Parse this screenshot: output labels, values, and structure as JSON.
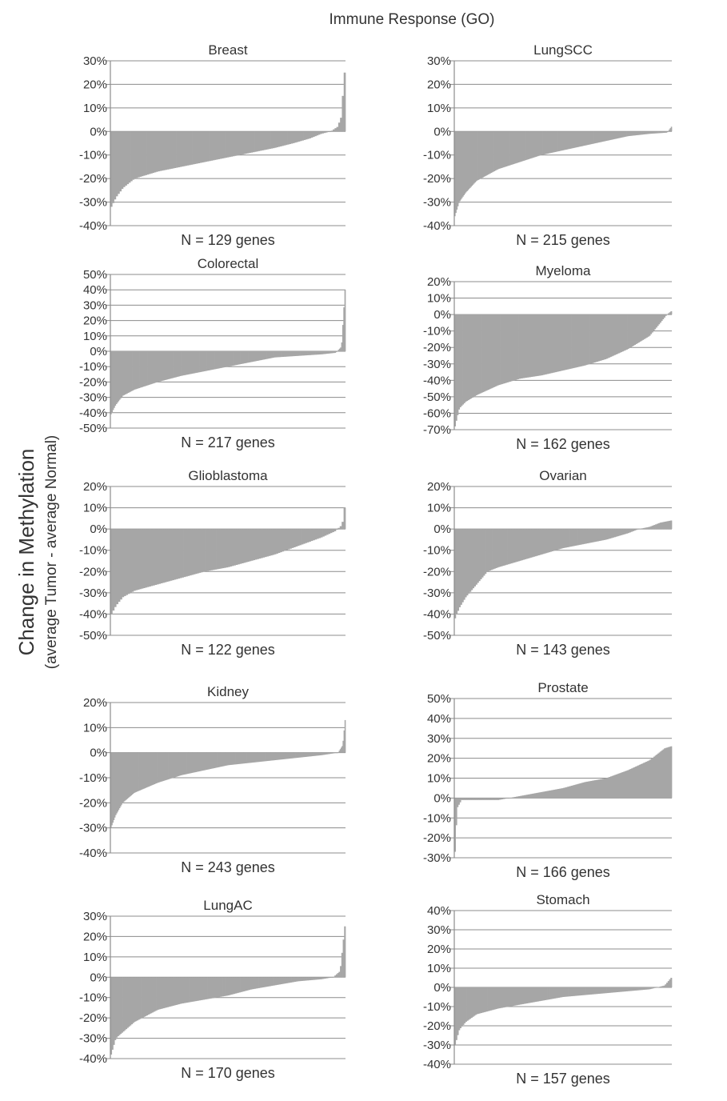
{
  "figure_title": "Immune Response (GO)",
  "ylabel_main": "Change in Methylation",
  "ylabel_sub": "(average Tumor - average Normal)",
  "colors": {
    "bars": "#a6a6a6",
    "gridlines": "#8c8c8c",
    "axis": "#8c8c8c",
    "text": "#333333"
  },
  "chart_data": [
    {
      "type": "bar",
      "title": "Breast",
      "xlabel": "N = 129 genes",
      "ylim": [
        -40,
        30
      ],
      "yticks": [
        "30%",
        "20%",
        "10%",
        "0%",
        "-10%",
        "-20%",
        "-30%",
        "-40%"
      ],
      "yunit": "%",
      "grid": true,
      "n_genes": 129,
      "profile": [
        [
          0,
          -32
        ],
        [
          0.02,
          -28
        ],
        [
          0.05,
          -24
        ],
        [
          0.1,
          -20
        ],
        [
          0.2,
          -17
        ],
        [
          0.3,
          -15
        ],
        [
          0.4,
          -13
        ],
        [
          0.5,
          -11
        ],
        [
          0.6,
          -9
        ],
        [
          0.7,
          -7
        ],
        [
          0.78,
          -5
        ],
        [
          0.85,
          -3
        ],
        [
          0.9,
          -1
        ],
        [
          0.94,
          0
        ],
        [
          0.97,
          2
        ],
        [
          0.985,
          6
        ],
        [
          1,
          25
        ]
      ]
    },
    {
      "type": "bar",
      "title": "LungSCC",
      "xlabel": "N = 215 genes",
      "ylim": [
        -40,
        30
      ],
      "yticks": [
        "30%",
        "20%",
        "10%",
        "0%",
        "-10%",
        "-20%",
        "-30%",
        "-40%"
      ],
      "yunit": "%",
      "grid": true,
      "n_genes": 215,
      "profile": [
        [
          0,
          -36
        ],
        [
          0.02,
          -30
        ],
        [
          0.05,
          -26
        ],
        [
          0.1,
          -21
        ],
        [
          0.2,
          -16
        ],
        [
          0.3,
          -13
        ],
        [
          0.4,
          -10
        ],
        [
          0.5,
          -8
        ],
        [
          0.6,
          -6
        ],
        [
          0.7,
          -4
        ],
        [
          0.8,
          -2
        ],
        [
          0.9,
          -1
        ],
        [
          0.98,
          -0.5
        ],
        [
          1,
          2
        ]
      ]
    },
    {
      "type": "bar",
      "title": "Colorectal",
      "xlabel": "N = 217 genes",
      "ylim": [
        -50,
        50
      ],
      "yticks": [
        "50%",
        "40%",
        "30%",
        "20%",
        "10%",
        "0%",
        "-10%",
        "-20%",
        "-30%",
        "-40%",
        "-50%"
      ],
      "yunit": "%",
      "grid": true,
      "n_genes": 217,
      "profile": [
        [
          0,
          -41
        ],
        [
          0.02,
          -35
        ],
        [
          0.05,
          -29
        ],
        [
          0.1,
          -25
        ],
        [
          0.2,
          -20
        ],
        [
          0.3,
          -16
        ],
        [
          0.4,
          -13
        ],
        [
          0.5,
          -10
        ],
        [
          0.6,
          -7
        ],
        [
          0.7,
          -4
        ],
        [
          0.8,
          -3
        ],
        [
          0.9,
          -2
        ],
        [
          0.96,
          -1
        ],
        [
          0.985,
          3
        ],
        [
          1,
          40
        ]
      ]
    },
    {
      "type": "bar",
      "title": "Myeloma",
      "xlabel": "N = 162 genes",
      "ylim": [
        -70,
        20
      ],
      "yticks": [
        "20%",
        "10%",
        "0%",
        "-10%",
        "-20%",
        "-30%",
        "-40%",
        "-50%",
        "-60%",
        "-70%"
      ],
      "yunit": "%",
      "grid": true,
      "n_genes": 162,
      "profile": [
        [
          0,
          -68
        ],
        [
          0.02,
          -57
        ],
        [
          0.05,
          -53
        ],
        [
          0.1,
          -49
        ],
        [
          0.2,
          -43
        ],
        [
          0.3,
          -39
        ],
        [
          0.4,
          -37
        ],
        [
          0.5,
          -34
        ],
        [
          0.6,
          -31
        ],
        [
          0.7,
          -27
        ],
        [
          0.8,
          -21
        ],
        [
          0.9,
          -13
        ],
        [
          0.95,
          -5
        ],
        [
          0.98,
          0
        ],
        [
          1,
          2
        ]
      ]
    },
    {
      "type": "bar",
      "title": "Glioblastoma",
      "xlabel": "N = 122 genes",
      "ylim": [
        -50,
        20
      ],
      "yticks": [
        "20%",
        "10%",
        "0%",
        "-10%",
        "-20%",
        "-30%",
        "-40%",
        "-50%"
      ],
      "yunit": "%",
      "grid": true,
      "n_genes": 122,
      "profile": [
        [
          0,
          -40
        ],
        [
          0.02,
          -36
        ],
        [
          0.05,
          -32
        ],
        [
          0.1,
          -29
        ],
        [
          0.2,
          -26
        ],
        [
          0.3,
          -23
        ],
        [
          0.4,
          -20
        ],
        [
          0.5,
          -18
        ],
        [
          0.6,
          -15
        ],
        [
          0.7,
          -12
        ],
        [
          0.8,
          -8
        ],
        [
          0.9,
          -4
        ],
        [
          0.96,
          -1
        ],
        [
          0.99,
          2
        ],
        [
          1,
          10
        ]
      ]
    },
    {
      "type": "bar",
      "title": "Ovarian",
      "xlabel": "N = 143 genes",
      "ylim": [
        -50,
        20
      ],
      "yticks": [
        "20%",
        "10%",
        "0%",
        "-10%",
        "-20%",
        "-30%",
        "-40%",
        "-50%"
      ],
      "yunit": "%",
      "grid": true,
      "n_genes": 143,
      "profile": [
        [
          0,
          -42
        ],
        [
          0.02,
          -37
        ],
        [
          0.05,
          -32
        ],
        [
          0.1,
          -26
        ],
        [
          0.15,
          -20
        ],
        [
          0.2,
          -18
        ],
        [
          0.3,
          -15
        ],
        [
          0.4,
          -12
        ],
        [
          0.5,
          -9
        ],
        [
          0.6,
          -7
        ],
        [
          0.7,
          -5
        ],
        [
          0.8,
          -2
        ],
        [
          0.85,
          0
        ],
        [
          0.9,
          1
        ],
        [
          0.95,
          3
        ],
        [
          1,
          4
        ]
      ]
    },
    {
      "type": "bar",
      "title": "Kidney",
      "xlabel": "N = 243 genes",
      "ylim": [
        -40,
        20
      ],
      "yticks": [
        "20%",
        "10%",
        "0%",
        "-10%",
        "-20%",
        "-30%",
        "-40%"
      ],
      "yunit": "%",
      "grid": true,
      "n_genes": 243,
      "profile": [
        [
          0,
          -30
        ],
        [
          0.02,
          -25
        ],
        [
          0.05,
          -20
        ],
        [
          0.1,
          -16
        ],
        [
          0.2,
          -12
        ],
        [
          0.3,
          -9
        ],
        [
          0.4,
          -7
        ],
        [
          0.5,
          -5
        ],
        [
          0.6,
          -4
        ],
        [
          0.7,
          -3
        ],
        [
          0.8,
          -2
        ],
        [
          0.9,
          -1
        ],
        [
          0.97,
          0
        ],
        [
          0.99,
          3
        ],
        [
          1,
          13
        ]
      ]
    },
    {
      "type": "bar",
      "title": "Prostate",
      "xlabel": "N = 166 genes",
      "ylim": [
        -30,
        50
      ],
      "yticks": [
        "50%",
        "40%",
        "30%",
        "20%",
        "10%",
        "0%",
        "-10%",
        "-20%",
        "-30%"
      ],
      "yunit": "%",
      "grid": true,
      "n_genes": 166,
      "profile": [
        [
          0,
          -27
        ],
        [
          0.01,
          -5
        ],
        [
          0.03,
          -1
        ],
        [
          0.2,
          -1
        ],
        [
          0.3,
          1
        ],
        [
          0.4,
          3
        ],
        [
          0.5,
          5
        ],
        [
          0.6,
          8
        ],
        [
          0.7,
          10
        ],
        [
          0.8,
          14
        ],
        [
          0.9,
          19
        ],
        [
          0.97,
          25
        ],
        [
          1,
          26
        ]
      ]
    },
    {
      "type": "bar",
      "title": "LungAC",
      "xlabel": "N = 170 genes",
      "ylim": [
        -40,
        30
      ],
      "yticks": [
        "30%",
        "20%",
        "10%",
        "0%",
        "-10%",
        "-20%",
        "-30%",
        "-40%"
      ],
      "yunit": "%",
      "grid": true,
      "n_genes": 170,
      "profile": [
        [
          0,
          -38
        ],
        [
          0.02,
          -30
        ],
        [
          0.05,
          -27
        ],
        [
          0.1,
          -22
        ],
        [
          0.2,
          -16
        ],
        [
          0.3,
          -13
        ],
        [
          0.4,
          -11
        ],
        [
          0.5,
          -9
        ],
        [
          0.6,
          -6
        ],
        [
          0.7,
          -4
        ],
        [
          0.8,
          -2
        ],
        [
          0.9,
          -1
        ],
        [
          0.95,
          0
        ],
        [
          0.98,
          3
        ],
        [
          1,
          25
        ]
      ]
    },
    {
      "type": "bar",
      "title": "Stomach",
      "xlabel": "N = 157 genes",
      "ylim": [
        -40,
        40
      ],
      "yticks": [
        "40%",
        "30%",
        "20%",
        "10%",
        "0%",
        "-10%",
        "-20%",
        "-30%",
        "-40%"
      ],
      "yunit": "%",
      "grid": true,
      "n_genes": 157,
      "profile": [
        [
          0,
          -30
        ],
        [
          0.02,
          -22
        ],
        [
          0.05,
          -18
        ],
        [
          0.1,
          -14
        ],
        [
          0.2,
          -11
        ],
        [
          0.3,
          -9
        ],
        [
          0.4,
          -7
        ],
        [
          0.5,
          -5
        ],
        [
          0.6,
          -4
        ],
        [
          0.7,
          -3
        ],
        [
          0.8,
          -2
        ],
        [
          0.9,
          -1
        ],
        [
          0.97,
          1
        ],
        [
          1,
          5
        ]
      ]
    }
  ]
}
